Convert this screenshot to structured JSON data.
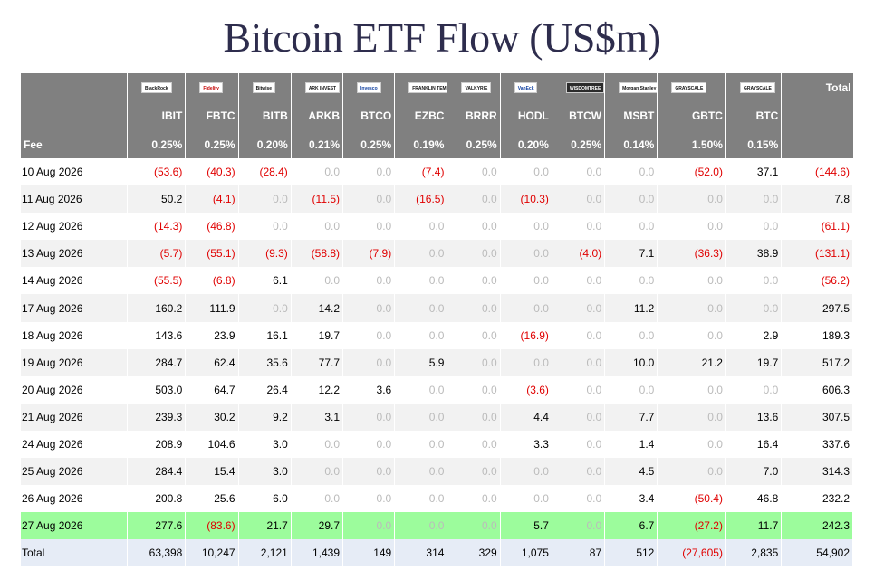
{
  "title": "Bitcoin ETF Flow (US$m)",
  "colors": {
    "header_bg": "#808080",
    "negative": "#e00000",
    "zero": "#bbbbbb",
    "highlight_row": "#9cfc9c",
    "total_row": "#e6ecf6"
  },
  "logos": [
    {
      "name": "BlackRock",
      "text": "BlackRock",
      "style": "plain"
    },
    {
      "name": "Fidelity",
      "text": "Fidelity",
      "style": "red"
    },
    {
      "name": "Bitwise",
      "text": "Bitwise",
      "style": "plain"
    },
    {
      "name": "ARK Invest",
      "text": "ARK INVEST",
      "style": "plain"
    },
    {
      "name": "Invesco",
      "text": "Invesco",
      "style": "blue"
    },
    {
      "name": "Franklin Templeton",
      "text": "FRANKLIN TEMPLETON",
      "style": "plain"
    },
    {
      "name": "Valkyrie",
      "text": "VALKYRIE",
      "style": "plain"
    },
    {
      "name": "VanEck",
      "text": "VanEck",
      "style": "blue"
    },
    {
      "name": "WisdomTree",
      "text": "WISDOMTREE",
      "style": "dark"
    },
    {
      "name": "Morgan Stanley",
      "text": "Morgan Stanley",
      "style": "plain"
    },
    {
      "name": "Grayscale",
      "text": "GRAYSCALE",
      "style": "plain"
    },
    {
      "name": "Grayscale",
      "text": "GRAYSCALE",
      "style": "plain"
    }
  ],
  "total_label": "Total",
  "tickers": [
    "IBIT",
    "FBTC",
    "BITB",
    "ARKB",
    "BTCO",
    "EZBC",
    "BRRR",
    "HODL",
    "BTCW",
    "MSBT",
    "GBTC",
    "BTC"
  ],
  "fee_label": "Fee",
  "fees": [
    "0.25%",
    "0.25%",
    "0.20%",
    "0.21%",
    "0.25%",
    "0.19%",
    "0.25%",
    "0.20%",
    "0.25%",
    "0.14%",
    "1.50%",
    "0.15%"
  ],
  "rows": [
    {
      "date": "10 Aug 2026",
      "values": [
        "(53.6)",
        "(40.3)",
        "(28.4)",
        "0.0",
        "0.0",
        "(7.4)",
        "0.0",
        "0.0",
        "0.0",
        "0.0",
        "(52.0)",
        "37.1"
      ],
      "total": "(144.6)"
    },
    {
      "date": "11 Aug 2026",
      "values": [
        "50.2",
        "(4.1)",
        "0.0",
        "(11.5)",
        "0.0",
        "(16.5)",
        "0.0",
        "(10.3)",
        "0.0",
        "0.0",
        "0.0",
        "0.0"
      ],
      "total": "7.8"
    },
    {
      "date": "12 Aug 2026",
      "values": [
        "(14.3)",
        "(46.8)",
        "0.0",
        "0.0",
        "0.0",
        "0.0",
        "0.0",
        "0.0",
        "0.0",
        "0.0",
        "0.0",
        "0.0"
      ],
      "total": "(61.1)"
    },
    {
      "date": "13 Aug 2026",
      "values": [
        "(5.7)",
        "(55.1)",
        "(9.3)",
        "(58.8)",
        "(7.9)",
        "0.0",
        "0.0",
        "0.0",
        "(4.0)",
        "7.1",
        "(36.3)",
        "38.9"
      ],
      "total": "(131.1)"
    },
    {
      "date": "14 Aug 2026",
      "values": [
        "(55.5)",
        "(6.8)",
        "6.1",
        "0.0",
        "0.0",
        "0.0",
        "0.0",
        "0.0",
        "0.0",
        "0.0",
        "0.0",
        "0.0"
      ],
      "total": "(56.2)"
    },
    {
      "date": "17 Aug 2026",
      "values": [
        "160.2",
        "111.9",
        "0.0",
        "14.2",
        "0.0",
        "0.0",
        "0.0",
        "0.0",
        "0.0",
        "11.2",
        "0.0",
        "0.0"
      ],
      "total": "297.5"
    },
    {
      "date": "18 Aug 2026",
      "values": [
        "143.6",
        "23.9",
        "16.1",
        "19.7",
        "0.0",
        "0.0",
        "0.0",
        "(16.9)",
        "0.0",
        "0.0",
        "0.0",
        "2.9"
      ],
      "total": "189.3"
    },
    {
      "date": "19 Aug 2026",
      "values": [
        "284.7",
        "62.4",
        "35.6",
        "77.7",
        "0.0",
        "5.9",
        "0.0",
        "0.0",
        "0.0",
        "10.0",
        "21.2",
        "19.7"
      ],
      "total": "517.2"
    },
    {
      "date": "20 Aug 2026",
      "values": [
        "503.0",
        "64.7",
        "26.4",
        "12.2",
        "3.6",
        "0.0",
        "0.0",
        "(3.6)",
        "0.0",
        "0.0",
        "0.0",
        "0.0"
      ],
      "total": "606.3"
    },
    {
      "date": "21 Aug 2026",
      "values": [
        "239.3",
        "30.2",
        "9.2",
        "3.1",
        "0.0",
        "0.0",
        "0.0",
        "4.4",
        "0.0",
        "7.7",
        "0.0",
        "13.6"
      ],
      "total": "307.5"
    },
    {
      "date": "24 Aug 2026",
      "values": [
        "208.9",
        "104.6",
        "3.0",
        "0.0",
        "0.0",
        "0.0",
        "0.0",
        "3.3",
        "0.0",
        "1.4",
        "0.0",
        "16.4"
      ],
      "total": "337.6"
    },
    {
      "date": "25 Aug 2026",
      "values": [
        "284.4",
        "15.4",
        "3.0",
        "0.0",
        "0.0",
        "0.0",
        "0.0",
        "0.0",
        "0.0",
        "4.5",
        "0.0",
        "7.0"
      ],
      "total": "314.3"
    },
    {
      "date": "26 Aug 2026",
      "values": [
        "200.8",
        "25.6",
        "6.0",
        "0.0",
        "0.0",
        "0.0",
        "0.0",
        "0.0",
        "0.0",
        "3.4",
        "(50.4)",
        "46.8"
      ],
      "total": "232.2"
    },
    {
      "date": "27 Aug 2026",
      "values": [
        "277.6",
        "(83.6)",
        "21.7",
        "29.7",
        "0.0",
        "0.0",
        "0.0",
        "5.7",
        "0.0",
        "6.7",
        "(27.2)",
        "11.7"
      ],
      "total": "242.3",
      "highlight": true
    }
  ],
  "totals_row": {
    "label": "Total",
    "values": [
      "63,398",
      "10,247",
      "2,121",
      "1,439",
      "149",
      "314",
      "329",
      "1,075",
      "87",
      "512",
      "(27,605)",
      "2,835"
    ],
    "total": "54,902"
  }
}
